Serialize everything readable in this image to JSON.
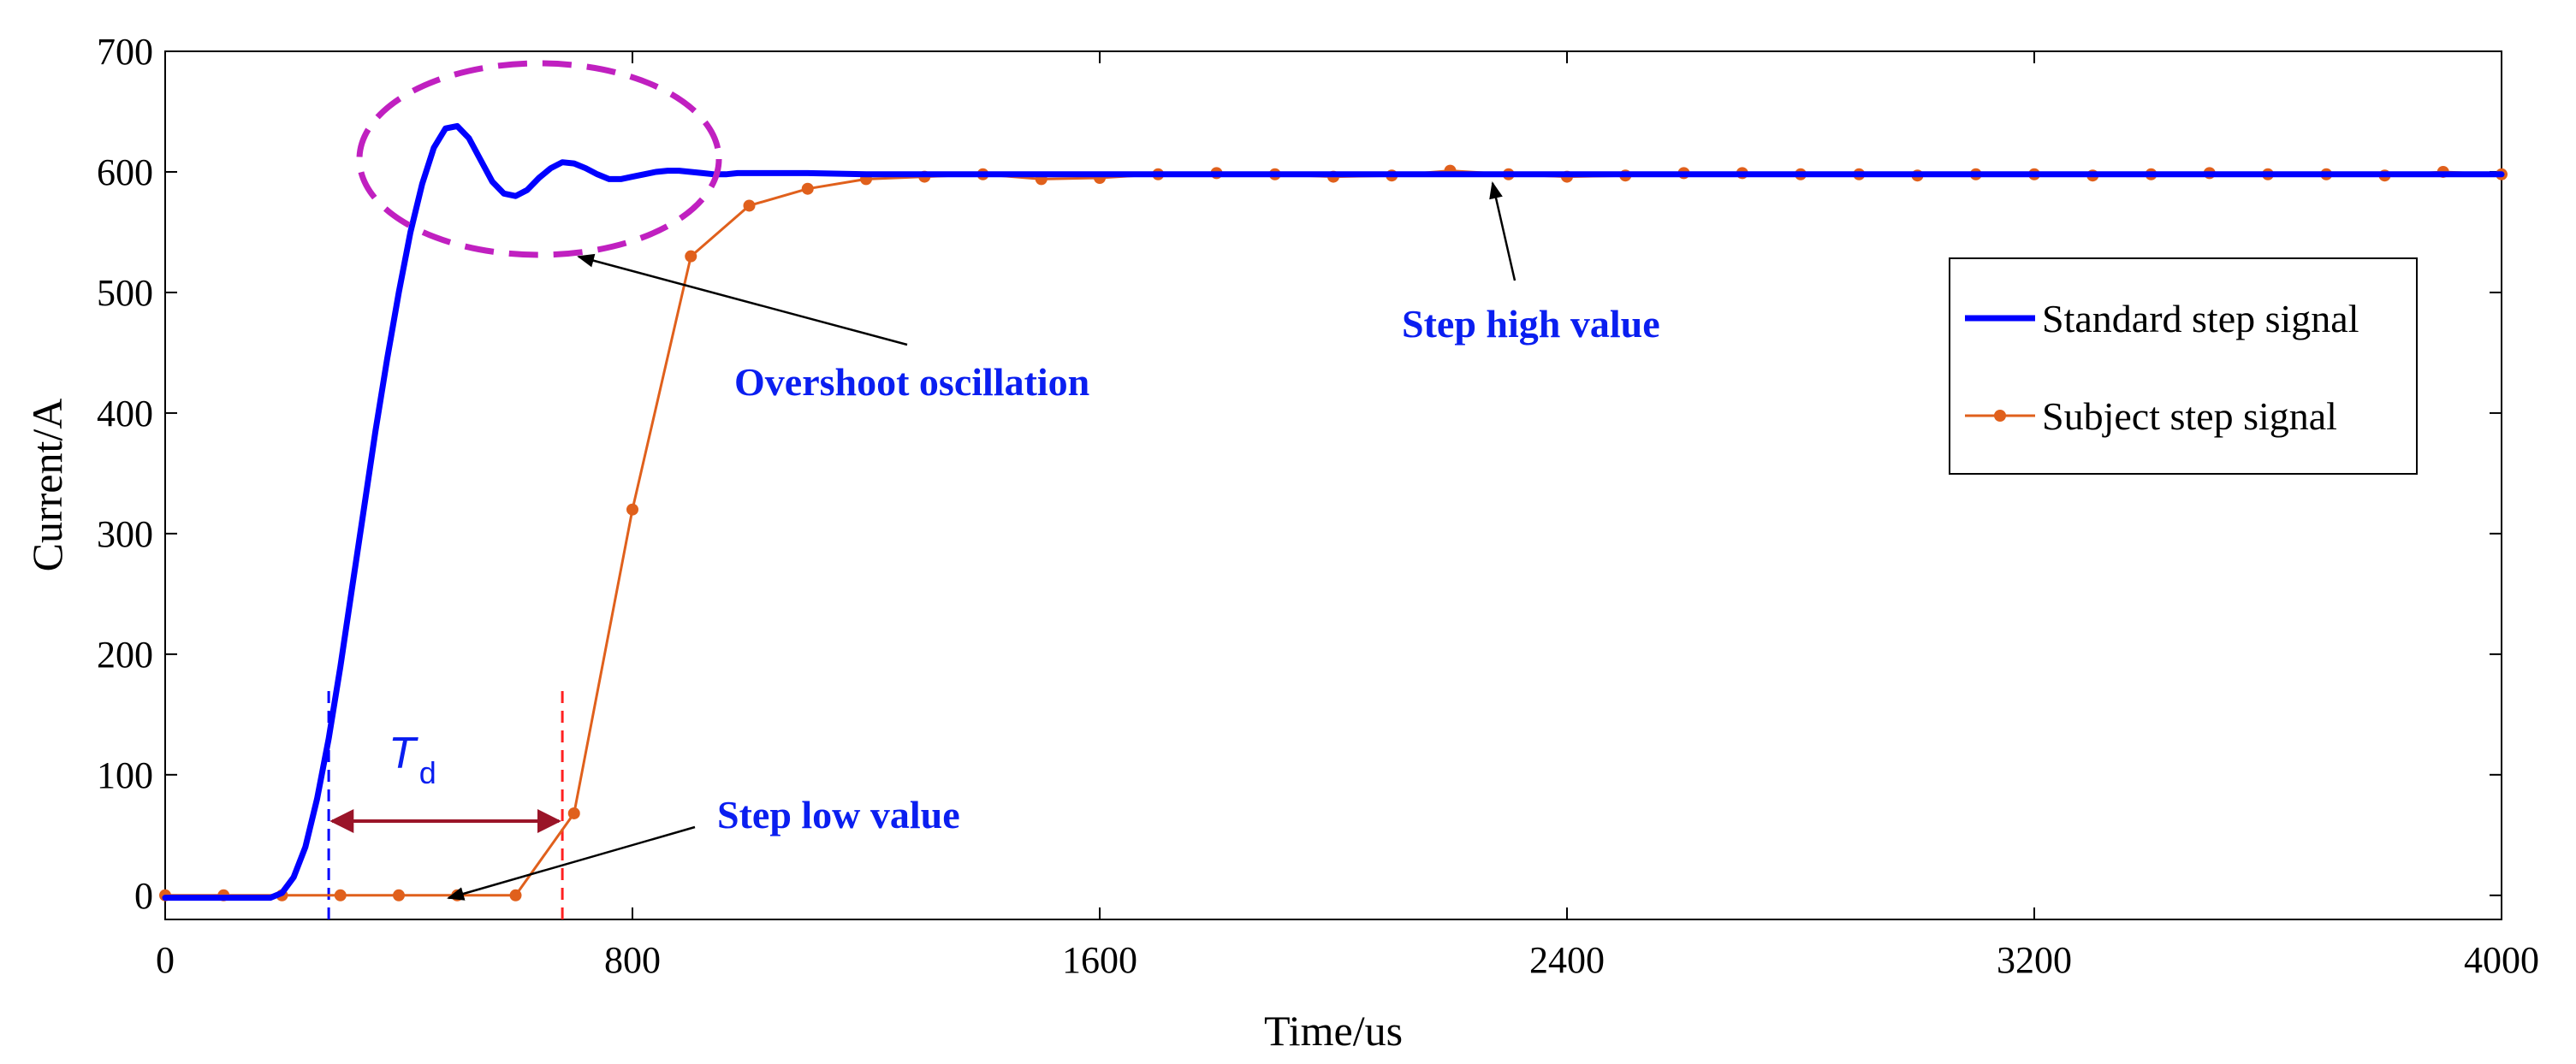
{
  "chart_data": {
    "type": "line",
    "title": "",
    "xlabel": "Time/us",
    "ylabel": "Current/A",
    "xlim": [
      0,
      4000
    ],
    "ylim": [
      -20,
      700
    ],
    "xticks": [
      0,
      800,
      1600,
      2400,
      3200,
      4000
    ],
    "xtick_labels": [
      "0",
      "800",
      "1600",
      "2400",
      "3200",
      "4000"
    ],
    "yticks": [
      0,
      100,
      200,
      300,
      400,
      500,
      600,
      700
    ],
    "ytick_labels": [
      "0",
      "100",
      "200",
      "300",
      "400",
      "500",
      "600",
      "700"
    ],
    "grid": false,
    "legend_position": "right",
    "series": [
      {
        "name": "Standard step signal",
        "color": "#0000ff",
        "marker": "none",
        "x": [
          0,
          180,
          200,
          220,
          240,
          260,
          280,
          300,
          320,
          340,
          360,
          380,
          400,
          420,
          440,
          460,
          480,
          500,
          520,
          540,
          560,
          580,
          600,
          620,
          640,
          660,
          680,
          700,
          720,
          740,
          760,
          780,
          800,
          820,
          840,
          860,
          880,
          900,
          920,
          940,
          960,
          980,
          1000,
          1050,
          1100,
          1200,
          1400,
          2000,
          4000
        ],
        "y": [
          -2,
          -2,
          2,
          15,
          40,
          80,
          130,
          190,
          255,
          320,
          385,
          445,
          500,
          550,
          590,
          620,
          636,
          638,
          628,
          610,
          592,
          582,
          580,
          585,
          595,
          603,
          608,
          607,
          603,
          598,
          594,
          594,
          596,
          598,
          600,
          601,
          601,
          600,
          599,
          598,
          598,
          599,
          599,
          599,
          599,
          598,
          598,
          598,
          598
        ]
      },
      {
        "name": "Subject step  signal",
        "color": "#e0601c",
        "marker": "o",
        "x": [
          0,
          100,
          200,
          300,
          400,
          500,
          600,
          700,
          800,
          900,
          1000,
          1100,
          1200,
          1300,
          1400,
          1500,
          1600,
          1700,
          1800,
          1900,
          2000,
          2100,
          2200,
          2300,
          2400,
          2500,
          2600,
          2700,
          2800,
          2900,
          3000,
          3100,
          3200,
          3300,
          3400,
          3500,
          3600,
          3700,
          3800,
          3900,
          4000
        ],
        "y": [
          0,
          0,
          0,
          0,
          0,
          0,
          0,
          68,
          320,
          530,
          572,
          586,
          594,
          596,
          598,
          594,
          595,
          598,
          599,
          598,
          596,
          597,
          601,
          598,
          596,
          597,
          599,
          599,
          598,
          598,
          597,
          598,
          598,
          597,
          598,
          599,
          598,
          598,
          597,
          600,
          598
        ]
      }
    ],
    "annotations": {
      "overshoot": "Overshoot oscillation",
      "step_high": "Step high value",
      "step_low": "Step low value",
      "delay_symbol": "T",
      "delay_subscript": "d"
    },
    "markers": {
      "standard_start_x": 280,
      "subject_start_x": 680
    }
  },
  "colors": {
    "axis": "#000000",
    "standard": "#0000ff",
    "subject": "#e0601c",
    "ellipse": "#c020c0",
    "td_arrow": "#9a1428",
    "blue_dash": "#0000ff",
    "red_dash": "#ff2020",
    "annot": "#0a1ef0"
  }
}
